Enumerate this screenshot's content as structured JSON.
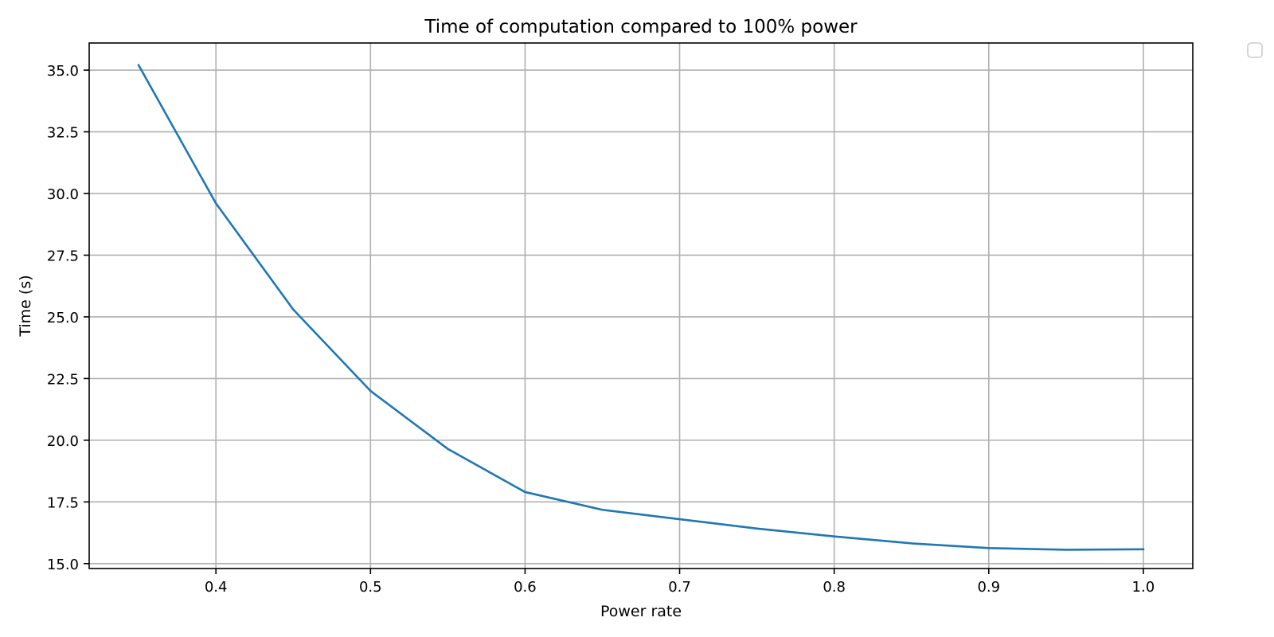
{
  "chart_data": {
    "type": "line",
    "title": "Time of computation compared to 100% power",
    "xlabel": "Power rate",
    "ylabel": "Time (s)",
    "xlim": [
      0.318,
      1.032
    ],
    "ylim": [
      14.8,
      36.1
    ],
    "xticks": [
      0.4,
      0.5,
      0.6,
      0.7,
      0.8,
      0.9,
      1.0
    ],
    "xtick_labels": [
      "0.4",
      "0.5",
      "0.6",
      "0.7",
      "0.8",
      "0.9",
      "1.0"
    ],
    "yticks": [
      15.0,
      17.5,
      20.0,
      22.5,
      25.0,
      27.5,
      30.0,
      32.5,
      35.0
    ],
    "ytick_labels": [
      "15.0",
      "17.5",
      "20.0",
      "22.5",
      "25.0",
      "27.5",
      "30.0",
      "32.5",
      "35.0"
    ],
    "grid": true,
    "legend": "upper-right-outside, empty",
    "series": [
      {
        "color": "#1f77b4",
        "x": [
          0.35,
          0.4,
          0.45,
          0.5,
          0.55,
          0.6,
          0.65,
          0.7,
          0.75,
          0.8,
          0.85,
          0.9,
          0.95,
          1.0
        ],
        "y": [
          35.2,
          29.6,
          25.3,
          22.0,
          19.65,
          17.9,
          17.18,
          16.8,
          16.42,
          16.1,
          15.82,
          15.63,
          15.56,
          15.58
        ]
      }
    ]
  }
}
